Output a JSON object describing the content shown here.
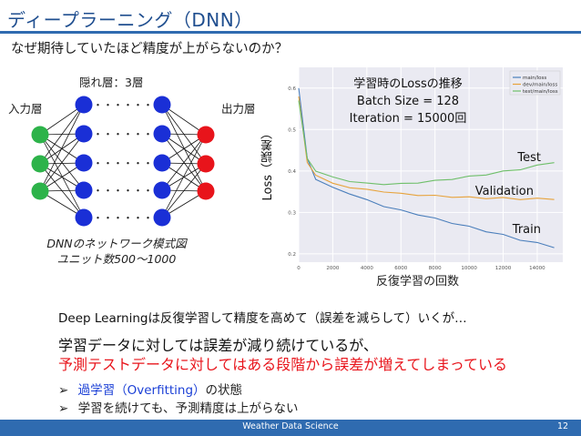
{
  "slide": {
    "title": "ディープラーニング（DNN）",
    "subtitle": "なぜ期待していたほど精度が上がらないのか？"
  },
  "network": {
    "input_label": "入力層",
    "hidden_label": "隠れ層：3層",
    "output_label": "出力層",
    "dots": "・・・・・・",
    "caption_line1": "DNNのネットワーク模式図",
    "caption_line2": "ユニット数500～1000",
    "colors": {
      "input": "#2db34a",
      "hidden": "#1a2fd6",
      "output": "#e8141b"
    }
  },
  "chart_header": {
    "line1": "学習時のLossの推移",
    "line2": "Batch Size = 128",
    "line3": "Iteration = 15000回"
  },
  "chart_data": {
    "type": "line",
    "ylabel": "Loss（誤差）",
    "xlabel": "反復学習の回数",
    "xlim": [
      0,
      15500
    ],
    "ylim": [
      0.18,
      0.65
    ],
    "x_ticks": [
      0,
      2000,
      4000,
      6000,
      8000,
      10000,
      12000,
      14000
    ],
    "y_ticks": [
      0.2,
      0.3,
      0.4,
      0.5,
      0.6
    ],
    "grid": true,
    "legend_position": "top-right",
    "legend": [
      "main/loss",
      "dev/main/loss",
      "test/main/loss"
    ],
    "series": [
      {
        "name": "main/loss",
        "label": "Train",
        "color": "#4a7ebb",
        "x": [
          0,
          500,
          1000,
          2000,
          3000,
          4000,
          5000,
          6000,
          7000,
          8000,
          9000,
          10000,
          11000,
          12000,
          13000,
          14000,
          15000
        ],
        "y": [
          0.6,
          0.43,
          0.38,
          0.36,
          0.345,
          0.33,
          0.315,
          0.305,
          0.295,
          0.285,
          0.275,
          0.265,
          0.255,
          0.245,
          0.235,
          0.225,
          0.215
        ]
      },
      {
        "name": "dev/main/loss",
        "label": "Validation",
        "color": "#e7a33c",
        "x": [
          0,
          500,
          1000,
          2000,
          3000,
          4000,
          5000,
          6000,
          7000,
          8000,
          9000,
          10000,
          11000,
          12000,
          13000,
          14000,
          15000
        ],
        "y": [
          0.58,
          0.42,
          0.39,
          0.37,
          0.36,
          0.355,
          0.35,
          0.345,
          0.342,
          0.34,
          0.338,
          0.336,
          0.335,
          0.334,
          0.333,
          0.332,
          0.331
        ]
      },
      {
        "name": "test/main/loss",
        "label": "Test",
        "color": "#6fbf6a",
        "x": [
          0,
          500,
          1000,
          2000,
          3000,
          4000,
          5000,
          6000,
          7000,
          8000,
          9000,
          10000,
          11000,
          12000,
          13000,
          14000,
          15000
        ],
        "y": [
          0.57,
          0.43,
          0.4,
          0.385,
          0.375,
          0.37,
          0.368,
          0.369,
          0.372,
          0.376,
          0.381,
          0.386,
          0.392,
          0.398,
          0.405,
          0.412,
          0.42
        ]
      }
    ]
  },
  "text": {
    "line1": "Deep Learningは反復学習して精度を高めて（誤差を減らして）いくが…",
    "line2": "学習データに対しては誤差が減り続けているが、",
    "line3": "予測テストデータに対してはある段階から誤差が増えてしまっている",
    "bullet_mark": "➢",
    "bullet1_accent": "過学習（Overfitting）",
    "bullet1_rest": "の状態",
    "bullet2": "学習を続けても、予測精度は上がらない",
    "accent_color": "#e8141b",
    "accent_blue": "#1a3fd6"
  },
  "footer": {
    "text": "Weather Data Science",
    "page": "12"
  }
}
